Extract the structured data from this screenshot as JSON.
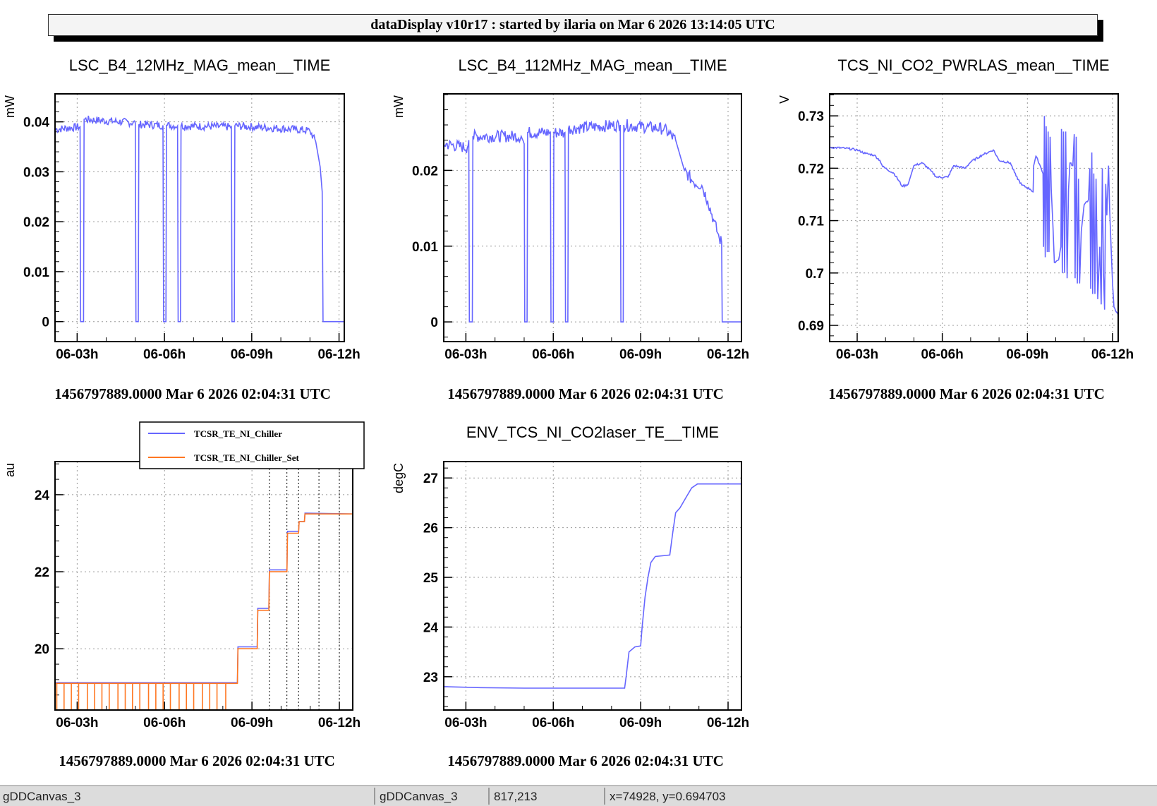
{
  "header": {
    "title": "dataDisplay v10r17 : started by ilaria on Mar  6 2026 13:14:05 UTC"
  },
  "status_bar": {
    "canvas_name": "gDDCanvas_3",
    "object_name": "gDDCanvas_3",
    "pixel": "817,213",
    "coords": "x=74928, y=0.694703"
  },
  "colors": {
    "blue": "#6666ff",
    "orange": "#ff7722",
    "frame": "#000000",
    "grid": "#999999"
  },
  "chart_data": [
    {
      "type": "line",
      "title": "LSC_B4_12MHz_MAG_mean__TIME",
      "ylabel": "mW",
      "footer": "1456797889.0000 Mar 6 2026 02:04:31 UTC",
      "xlim": [
        2.24,
        12.18
      ],
      "ylim": [
        -0.004,
        0.0456
      ],
      "xticks": [
        3,
        6,
        9,
        12
      ],
      "xtick_labels": [
        "06-03h",
        "06-06h",
        "06-09h",
        "06-12h"
      ],
      "yticks": [
        0,
        0.01,
        0.02,
        0.03,
        0.04
      ],
      "ytick_labels": [
        "0",
        "0.01",
        "0.02",
        "0.03",
        "0.04"
      ],
      "series": [
        {
          "name": "LSC_B4_12MHz_MAG_mean",
          "color": "#6666ff",
          "noise": 0.0008,
          "points": [
            [
              2.24,
              0.0385
            ],
            [
              3.1,
              0.039
            ],
            [
              3.12,
              0
            ],
            [
              3.22,
              0
            ],
            [
              3.24,
              0.0405
            ],
            [
              5.0,
              0.0398
            ],
            [
              5.02,
              0
            ],
            [
              5.1,
              0
            ],
            [
              5.12,
              0.0395
            ],
            [
              5.95,
              0.0393
            ],
            [
              5.97,
              0
            ],
            [
              6.05,
              0
            ],
            [
              6.07,
              0.0393
            ],
            [
              6.45,
              0.0392
            ],
            [
              6.47,
              0
            ],
            [
              6.55,
              0
            ],
            [
              6.57,
              0.0392
            ],
            [
              8.3,
              0.039
            ],
            [
              8.32,
              0
            ],
            [
              8.4,
              0
            ],
            [
              8.42,
              0.0392
            ],
            [
              10.5,
              0.0385
            ],
            [
              11.0,
              0.0382
            ],
            [
              11.2,
              0.036
            ],
            [
              11.35,
              0.031
            ],
            [
              11.42,
              0.026
            ],
            [
              11.45,
              0
            ],
            [
              12.18,
              0
            ]
          ]
        }
      ]
    },
    {
      "type": "line",
      "title": "LSC_B4_112MHz_MAG_mean__TIME",
      "ylabel": "mW",
      "footer": "1456797889.0000 Mar 6 2026 02:04:31 UTC",
      "xlim": [
        2.24,
        12.46
      ],
      "ylim": [
        -0.0026,
        0.0301
      ],
      "xticks": [
        3,
        6,
        9,
        12
      ],
      "xtick_labels": [
        "06-03h",
        "06-06h",
        "06-09h",
        "06-12h"
      ],
      "yticks": [
        0,
        0.01,
        0.02
      ],
      "ytick_labels": [
        "0",
        "0.01",
        "0.02"
      ],
      "series": [
        {
          "name": "LSC_B4_112MHz_MAG_mean",
          "color": "#6666ff",
          "noise": 0.0008,
          "points": [
            [
              2.24,
              0.0235
            ],
            [
              3.05,
              0.023
            ],
            [
              3.1,
              0.024
            ],
            [
              3.12,
              0
            ],
            [
              3.22,
              0
            ],
            [
              3.24,
              0.0245
            ],
            [
              4.9,
              0.0245
            ],
            [
              5.0,
              0.0235
            ],
            [
              5.02,
              0
            ],
            [
              5.1,
              0
            ],
            [
              5.12,
              0.025
            ],
            [
              5.9,
              0.025
            ],
            [
              5.92,
              0
            ],
            [
              6.0,
              0
            ],
            [
              6.02,
              0.025
            ],
            [
              6.4,
              0.025
            ],
            [
              6.42,
              0
            ],
            [
              6.5,
              0
            ],
            [
              6.52,
              0.0255
            ],
            [
              8.3,
              0.026
            ],
            [
              8.32,
              0
            ],
            [
              8.4,
              0
            ],
            [
              8.42,
              0.026
            ],
            [
              9.8,
              0.0255
            ],
            [
              10.2,
              0.024
            ],
            [
              10.5,
              0.02
            ],
            [
              10.8,
              0.0185
            ],
            [
              11.1,
              0.018
            ],
            [
              11.3,
              0.016
            ],
            [
              11.5,
              0.0135
            ],
            [
              11.7,
              0.011
            ],
            [
              11.78,
              0.0105
            ],
            [
              11.8,
              0
            ],
            [
              12.46,
              0
            ]
          ]
        }
      ]
    },
    {
      "type": "line",
      "title": "TCS_NI_CO2_PWRLAS_mean__TIME",
      "ylabel": "V",
      "footer": "1456797889.0000 Mar 6 2026 02:04:31 UTC",
      "xlim": [
        2.03,
        12.2
      ],
      "ylim": [
        0.6869,
        0.7342
      ],
      "xticks": [
        3,
        6,
        9,
        12
      ],
      "xtick_labels": [
        "06-03h",
        "06-06h",
        "06-09h",
        "06-12h"
      ],
      "yticks": [
        0.69,
        0.7,
        0.71,
        0.72,
        0.73
      ],
      "ytick_labels": [
        "0.69",
        "0.7",
        "0.71",
        "0.72",
        "0.73"
      ],
      "series": [
        {
          "name": "TCS_NI_CO2_PWRLAS_mean",
          "color": "#6666ff",
          "noise": 0.0002,
          "points": [
            [
              2.03,
              0.724
            ],
            [
              2.6,
              0.7238
            ],
            [
              3.0,
              0.7235
            ],
            [
              3.3,
              0.7228
            ],
            [
              3.6,
              0.7225
            ],
            [
              3.8,
              0.7215
            ],
            [
              3.9,
              0.7203
            ],
            [
              4.3,
              0.719
            ],
            [
              4.6,
              0.7165
            ],
            [
              4.8,
              0.717
            ],
            [
              5.0,
              0.7205
            ],
            [
              5.3,
              0.721
            ],
            [
              5.6,
              0.7195
            ],
            [
              5.8,
              0.7183
            ],
            [
              6.2,
              0.7183
            ],
            [
              6.4,
              0.7205
            ],
            [
              6.8,
              0.72
            ],
            [
              7.0,
              0.7212
            ],
            [
              7.4,
              0.7225
            ],
            [
              7.8,
              0.7235
            ],
            [
              8.0,
              0.7215
            ],
            [
              8.4,
              0.721
            ],
            [
              8.6,
              0.7185
            ],
            [
              8.8,
              0.7168
            ],
            [
              9.1,
              0.716
            ],
            [
              9.2,
              0.7155
            ],
            [
              9.22,
              0.7205
            ],
            [
              9.3,
              0.7223
            ],
            [
              9.45,
              0.7205
            ],
            [
              9.55,
              0.719
            ],
            [
              9.57,
              0.705
            ],
            [
              9.6,
              0.73
            ],
            [
              9.63,
              0.703
            ],
            [
              9.66,
              0.728
            ],
            [
              9.7,
              0.704
            ],
            [
              9.73,
              0.727
            ],
            [
              9.76,
              0.704
            ],
            [
              9.8,
              0.726
            ],
            [
              9.84,
              0.716
            ],
            [
              9.9,
              0.709
            ],
            [
              9.95,
              0.702
            ],
            [
              10.1,
              0.7025
            ],
            [
              10.18,
              0.705
            ],
            [
              10.2,
              0.7275
            ],
            [
              10.23,
              0.7
            ],
            [
              10.27,
              0.727
            ],
            [
              10.31,
              0.7
            ],
            [
              10.35,
              0.727
            ],
            [
              10.4,
              0.699
            ],
            [
              10.45,
              0.716
            ],
            [
              10.5,
              0.721
            ],
            [
              10.6,
              0.7205
            ],
            [
              10.65,
              0.7265
            ],
            [
              10.68,
              0.699
            ],
            [
              10.72,
              0.726
            ],
            [
              10.76,
              0.698
            ],
            [
              10.8,
              0.718
            ],
            [
              10.84,
              0.698
            ],
            [
              10.9,
              0.708
            ],
            [
              11.0,
              0.713
            ],
            [
              11.15,
              0.714
            ],
            [
              11.2,
              0.72
            ],
            [
              11.23,
              0.697
            ],
            [
              11.27,
              0.723
            ],
            [
              11.3,
              0.696
            ],
            [
              11.34,
              0.719
            ],
            [
              11.38,
              0.696
            ],
            [
              11.42,
              0.718
            ],
            [
              11.48,
              0.695
            ],
            [
              11.55,
              0.705
            ],
            [
              11.6,
              0.694
            ],
            [
              11.64,
              0.72
            ],
            [
              11.68,
              0.7
            ],
            [
              11.72,
              0.693
            ],
            [
              11.76,
              0.717
            ],
            [
              11.8,
              0.711
            ],
            [
              11.86,
              0.7205
            ],
            [
              11.9,
              0.712
            ],
            [
              11.95,
              0.705
            ],
            [
              12.0,
              0.698
            ],
            [
              12.05,
              0.6935
            ],
            [
              12.2,
              0.692
            ]
          ]
        }
      ]
    },
    {
      "type": "line",
      "title": "",
      "ylabel": "au",
      "footer": "1456797889.0000 Mar 6 2026 02:04:31 UTC",
      "xlim": [
        2.24,
        12.46
      ],
      "ylim": [
        18.41,
        24.86
      ],
      "xticks": [
        3,
        6,
        9,
        12
      ],
      "xtick_labels": [
        "06-03h",
        "06-06h",
        "06-09h",
        "06-12h"
      ],
      "yticks": [
        20,
        22,
        24
      ],
      "ytick_labels": [
        "20",
        "22",
        "24"
      ],
      "markers_x": [
        9.6,
        10.2,
        10.6,
        11.3,
        12.0
      ],
      "legend": {
        "position": "top",
        "entries": [
          "TCSR_TE_NI_Chiller",
          "TCSR_TE_NI_Chiller_Set"
        ]
      },
      "series": [
        {
          "name": "TCSR_TE_NI_Chiller",
          "color": "#6666ff",
          "noise": 0,
          "points": [
            [
              2.24,
              19.12
            ],
            [
              8.5,
              19.12
            ],
            [
              8.52,
              20.05
            ],
            [
              9.18,
              20.05
            ],
            [
              9.2,
              21.05
            ],
            [
              9.58,
              21.05
            ],
            [
              9.6,
              22.05
            ],
            [
              10.2,
              22.05
            ],
            [
              10.22,
              23.05
            ],
            [
              10.6,
              23.05
            ],
            [
              10.62,
              23.3
            ],
            [
              10.8,
              23.3
            ],
            [
              10.82,
              23.52
            ],
            [
              12.46,
              23.5
            ]
          ]
        },
        {
          "name": "TCSR_TE_NI_Chiller_Set",
          "color": "#ff7722",
          "noise": 0,
          "dropouts": [
            2.3,
            2.55,
            2.8,
            3.05,
            3.35,
            3.6,
            3.85,
            4.1,
            4.4,
            4.65,
            4.9,
            5.15,
            5.45,
            5.7,
            5.95,
            6.2,
            6.5,
            6.75,
            7.0,
            7.3,
            7.55,
            7.8,
            8.1
          ],
          "points": [
            [
              2.24,
              19.1
            ],
            [
              8.5,
              19.1
            ],
            [
              8.52,
              20.0
            ],
            [
              9.18,
              20.0
            ],
            [
              9.2,
              21.0
            ],
            [
              9.58,
              21.0
            ],
            [
              9.6,
              22.0
            ],
            [
              10.2,
              22.0
            ],
            [
              10.22,
              23.0
            ],
            [
              10.6,
              23.0
            ],
            [
              10.62,
              23.3
            ],
            [
              10.8,
              23.3
            ],
            [
              10.82,
              23.5
            ],
            [
              12.46,
              23.5
            ]
          ]
        }
      ]
    },
    {
      "type": "line",
      "title": "ENV_TCS_NI_CO2laser_TE__TIME",
      "ylabel": "degC",
      "footer": "1456797889.0000 Mar 6 2026 02:04:31 UTC",
      "xlim": [
        2.24,
        12.46
      ],
      "ylim": [
        22.33,
        27.33
      ],
      "xticks": [
        3,
        6,
        9,
        12
      ],
      "xtick_labels": [
        "06-03h",
        "06-06h",
        "06-09h",
        "06-12h"
      ],
      "yticks": [
        23,
        24,
        25,
        26,
        27
      ],
      "ytick_labels": [
        "23",
        "24",
        "25",
        "26",
        "27"
      ],
      "series": [
        {
          "name": "ENV_TCS_NI_CO2laser_TE",
          "color": "#6666ff",
          "noise": 0,
          "points": [
            [
              2.24,
              22.8
            ],
            [
              3.5,
              22.78
            ],
            [
              5.0,
              22.77
            ],
            [
              8.45,
              22.77
            ],
            [
              8.5,
              23.0
            ],
            [
              8.6,
              23.5
            ],
            [
              8.8,
              23.6
            ],
            [
              9.0,
              23.62
            ],
            [
              9.05,
              24.0
            ],
            [
              9.15,
              24.6
            ],
            [
              9.25,
              25.0
            ],
            [
              9.35,
              25.3
            ],
            [
              9.5,
              25.42
            ],
            [
              10.0,
              25.45
            ],
            [
              10.1,
              25.9
            ],
            [
              10.2,
              26.3
            ],
            [
              10.35,
              26.4
            ],
            [
              10.55,
              26.6
            ],
            [
              10.75,
              26.8
            ],
            [
              10.95,
              26.88
            ],
            [
              12.46,
              26.88
            ]
          ]
        }
      ]
    }
  ]
}
